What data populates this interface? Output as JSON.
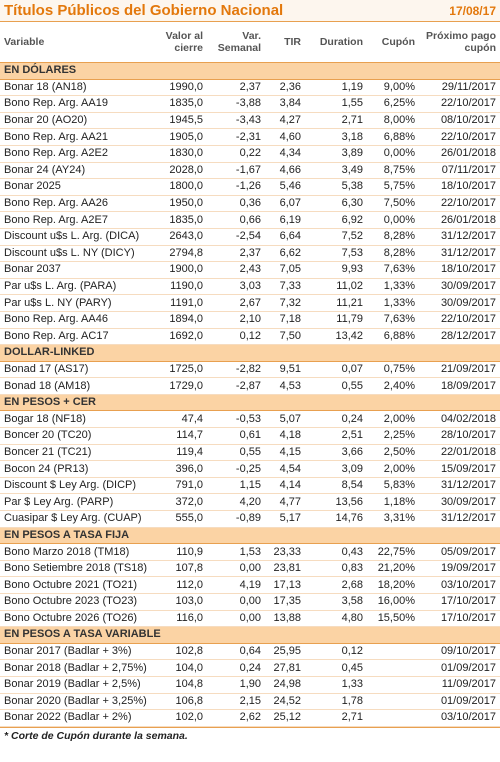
{
  "header": {
    "title": "Títulos Públicos del Gobierno Nacional",
    "date": "17/08/17"
  },
  "table": {
    "columns": [
      "Variable",
      "Valor al cierre",
      "Var. Semanal",
      "TIR",
      "Duration",
      "Cupón",
      "Próximo pago cupón"
    ],
    "sections": [
      {
        "name": "EN DÓLARES",
        "rows": [
          [
            "Bonar 18 (AN18)",
            "1990,0",
            "2,37",
            "2,36",
            "1,19",
            "9,00%",
            "29/11/2017"
          ],
          [
            "Bono Rep. Arg. AA19",
            "1835,0",
            "-3,88",
            "3,84",
            "1,55",
            "6,25%",
            "22/10/2017"
          ],
          [
            "Bonar 20 (AO20)",
            "1945,5",
            "-3,43",
            "4,27",
            "2,71",
            "8,00%",
            "08/10/2017"
          ],
          [
            "Bono Rep. Arg. AA21",
            "1905,0",
            "-2,31",
            "4,60",
            "3,18",
            "6,88%",
            "22/10/2017"
          ],
          [
            "Bono Rep. Arg. A2E2",
            "1830,0",
            "0,22",
            "4,34",
            "3,89",
            "0,00%",
            "26/01/2018"
          ],
          [
            "Bonar 24 (AY24)",
            "2028,0",
            "-1,67",
            "4,66",
            "3,49",
            "8,75%",
            "07/11/2017"
          ],
          [
            "Bonar 2025",
            "1800,0",
            "-1,26",
            "5,46",
            "5,38",
            "5,75%",
            "18/10/2017"
          ],
          [
            "Bono Rep. Arg. AA26",
            "1950,0",
            "0,36",
            "6,07",
            "6,30",
            "7,50%",
            "22/10/2017"
          ],
          [
            "Bono Rep. Arg. A2E7",
            "1835,0",
            "0,66",
            "6,19",
            "6,92",
            "0,00%",
            "26/01/2018"
          ],
          [
            "Discount u$s L. Arg. (DICA)",
            "2643,0",
            "-2,54",
            "6,64",
            "7,52",
            "8,28%",
            "31/12/2017"
          ],
          [
            "Discount u$s L. NY (DICY)",
            "2794,8",
            "2,37",
            "6,62",
            "7,53",
            "8,28%",
            "31/12/2017"
          ],
          [
            "Bonar 2037",
            "1900,0",
            "2,43",
            "7,05",
            "9,93",
            "7,63%",
            "18/10/2017"
          ],
          [
            "Par u$s L. Arg. (PARA)",
            "1190,0",
            "3,03",
            "7,33",
            "11,02",
            "1,33%",
            "30/09/2017"
          ],
          [
            "Par u$s L. NY (PARY)",
            "1191,0",
            "2,67",
            "7,32",
            "11,21",
            "1,33%",
            "30/09/2017"
          ],
          [
            "Bono Rep. Arg. AA46",
            "1894,0",
            "2,10",
            "7,18",
            "11,79",
            "7,63%",
            "22/10/2017"
          ],
          [
            "Bono Rep. Arg. AC17",
            "1692,0",
            "0,12",
            "7,50",
            "13,42",
            "6,88%",
            "28/12/2017"
          ]
        ]
      },
      {
        "name": "DOLLAR-LINKED",
        "rows": [
          [
            "Bonad 17 (AS17)",
            "1725,0",
            "-2,82",
            "9,51",
            "0,07",
            "0,75%",
            "21/09/2017"
          ],
          [
            "Bonad 18 (AM18)",
            "1729,0",
            "-2,87",
            "4,53",
            "0,55",
            "2,40%",
            "18/09/2017"
          ]
        ]
      },
      {
        "name": "EN PESOS + CER",
        "rows": [
          [
            "Bogar 18 (NF18)",
            "47,4",
            "-0,53",
            "5,07",
            "0,24",
            "2,00%",
            "04/02/2018"
          ],
          [
            "Boncer 20 (TC20)",
            "114,7",
            "0,61",
            "4,18",
            "2,51",
            "2,25%",
            "28/10/2017"
          ],
          [
            "Boncer 21 (TC21)",
            "119,4",
            "0,55",
            "4,15",
            "3,66",
            "2,50%",
            "22/01/2018"
          ],
          [
            "Bocon 24 (PR13)",
            "396,0",
            "-0,25",
            "4,54",
            "3,09",
            "2,00%",
            "15/09/2017"
          ],
          [
            "Discount $ Ley Arg. (DICP)",
            "791,0",
            "1,15",
            "4,14",
            "8,54",
            "5,83%",
            "31/12/2017"
          ],
          [
            "Par $ Ley Arg. (PARP)",
            "372,0",
            "4,20",
            "4,77",
            "13,56",
            "1,18%",
            "30/09/2017"
          ],
          [
            "Cuasipar $ Ley Arg. (CUAP)",
            "555,0",
            "-0,89",
            "5,17",
            "14,76",
            "3,31%",
            "31/12/2017"
          ]
        ]
      },
      {
        "name": "EN PESOS A TASA FIJA",
        "rows": [
          [
            "Bono Marzo 2018 (TM18)",
            "110,9",
            "1,53",
            "23,33",
            "0,43",
            "22,75%",
            "05/09/2017"
          ],
          [
            "Bono Setiembre 2018 (TS18)",
            "107,8",
            "0,00",
            "23,81",
            "0,83",
            "21,20%",
            "19/09/2017"
          ],
          [
            "Bono Octubre 2021 (TO21)",
            "112,0",
            "4,19",
            "17,13",
            "2,68",
            "18,20%",
            "03/10/2017"
          ],
          [
            "Bono Octubre 2023 (TO23)",
            "103,0",
            "0,00",
            "17,35",
            "3,58",
            "16,00%",
            "17/10/2017"
          ],
          [
            "Bono Octubre 2026 (TO26)",
            "116,0",
            "0,00",
            "13,88",
            "4,80",
            "15,50%",
            "17/10/2017"
          ]
        ]
      },
      {
        "name": "EN PESOS A TASA VARIABLE",
        "rows": [
          [
            "Bonar 2017 (Badlar + 3%)",
            "102,8",
            "0,64",
            "25,95",
            "0,12",
            null,
            "09/10/2017"
          ],
          [
            "Bonar 2018 (Badlar + 2,75%)",
            "104,0",
            "0,24",
            "27,81",
            "0,45",
            null,
            "01/09/2017"
          ],
          [
            "Bonar 2019 (Badlar + 2,5%)",
            "104,8",
            "1,90",
            "24,98",
            "1,33",
            null,
            "11/09/2017"
          ],
          [
            "Bonar 2020 (Badlar + 3,25%)",
            "106,8",
            "2,15",
            "24,52",
            "1,78",
            null,
            "01/09/2017"
          ],
          [
            "Bonar 2022 (Badlar + 2%)",
            "102,0",
            "2,62",
            "25,12",
            "2,71",
            null,
            "03/10/2017"
          ]
        ]
      }
    ]
  },
  "footnote": "* Corte de Cupón durante la semana."
}
